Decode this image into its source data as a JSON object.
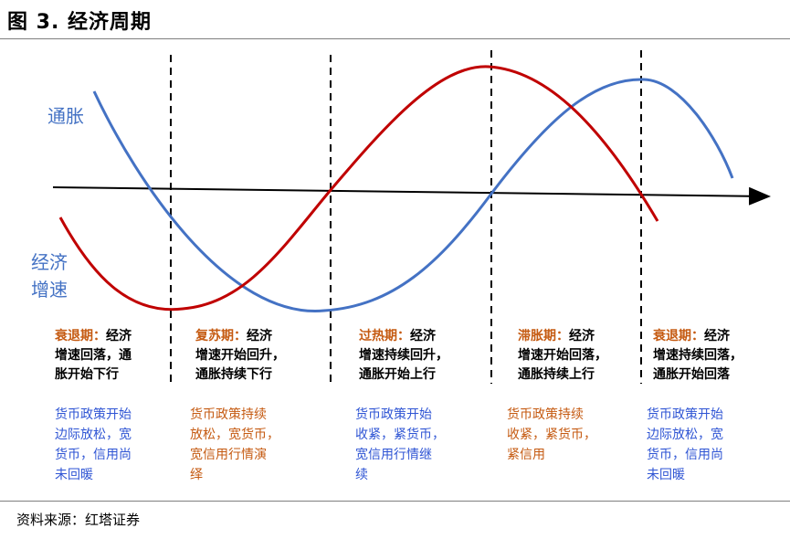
{
  "title": "图 3. 经济周期",
  "source": "资料来源：红塔证券",
  "labels": {
    "inflation": "通胀",
    "growth_line1": "经济",
    "growth_line2": "增速"
  },
  "phases": [
    {
      "name": "衰退期：",
      "desc_1": "经济",
      "desc_2": "增速回落，通",
      "desc_3": "胀开始下行",
      "policy": [
        "货币政策开始",
        "边际放松，宽",
        "货币，信用尚",
        "未回暖"
      ],
      "policy_color": "blue"
    },
    {
      "name": "复苏期：",
      "desc_1": "经济",
      "desc_2": "增速开始回升，",
      "desc_3": "通胀持续下行",
      "policy": [
        "货币政策持续",
        "放松，宽货币，",
        "宽信用行情演",
        "绎"
      ],
      "policy_color": "orange"
    },
    {
      "name": "过热期：",
      "desc_1": "经济",
      "desc_2": "增速持续回升，",
      "desc_3": "通胀开始上行",
      "policy": [
        "货币政策开始",
        "收紧，紧货币，",
        "宽信用行情继",
        "续"
      ],
      "policy_color": "blue"
    },
    {
      "name": "滞胀期：",
      "desc_1": "经济",
      "desc_2": "增速开始回落，",
      "desc_3": "通胀持续上行",
      "policy": [
        "货币政策持续",
        "收紧，紧货币，",
        "紧信用"
      ],
      "policy_color": "orange"
    },
    {
      "name": "衰退期：",
      "desc_1": "经济",
      "desc_2": "增速持续回落，",
      "desc_3": "通胀开始回落",
      "policy": [
        "货币政策开始",
        "边际放松，宽",
        "货币，信用尚",
        "未回暖"
      ],
      "policy_color": "blue"
    }
  ],
  "colors": {
    "inflation": "#4472c4",
    "growth": "#c00000",
    "phase_name": "#c55a11",
    "policy_blue": "#2f55d4",
    "policy_orange": "#c55a11"
  }
}
